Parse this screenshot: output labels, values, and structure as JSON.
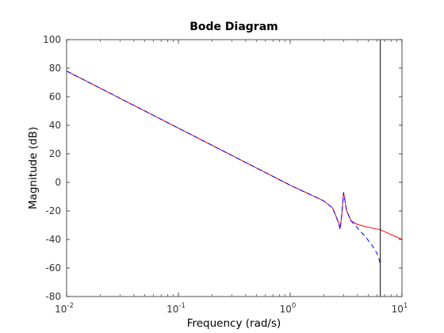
{
  "chart_data": {
    "type": "line",
    "title": "Bode Diagram",
    "xlabel": "Frequency  (rad/s)",
    "ylabel": "Magnitude (dB)",
    "xscale": "log",
    "xlim": [
      0.01,
      10
    ],
    "ylim": [
      -80,
      100
    ],
    "grid": false,
    "x_ticks": [
      {
        "base": "10",
        "exp": "-2",
        "value": 0.01
      },
      {
        "base": "10",
        "exp": "-1",
        "value": 0.1
      },
      {
        "base": "10",
        "exp": "0",
        "value": 1
      },
      {
        "base": "10",
        "exp": "1",
        "value": 10
      }
    ],
    "y_ticks": [
      100,
      80,
      60,
      40,
      20,
      0,
      -20,
      -40,
      -60,
      -80
    ],
    "vertical_marker": {
      "x": 6.4,
      "color": "#000000"
    },
    "series": [
      {
        "style": "solid",
        "color": "#ff0000",
        "x": [
          0.01,
          0.1,
          1,
          2.0,
          2.4,
          2.7,
          2.8,
          2.9,
          3.0,
          3.2,
          3.5,
          4.0,
          5.0,
          6.4,
          10
        ],
        "y": [
          78,
          38,
          -2,
          -13,
          -18,
          -28,
          -32,
          -22,
          -7,
          -20,
          -27,
          -29.5,
          -31.5,
          -33.2,
          -40
        ]
      },
      {
        "style": "dashed",
        "color": "#0000ff",
        "x": [
          0.01,
          0.1,
          1,
          2.0,
          2.4,
          2.7,
          2.8,
          2.9,
          3.0,
          3.2,
          3.5,
          4.0,
          4.8,
          5.5,
          6.0,
          6.3,
          6.4
        ],
        "y": [
          78,
          38,
          -2,
          -13,
          -18,
          -28,
          -33,
          -22,
          -7,
          -20,
          -27,
          -32,
          -39,
          -45,
          -50,
          -55,
          -58
        ]
      }
    ]
  }
}
